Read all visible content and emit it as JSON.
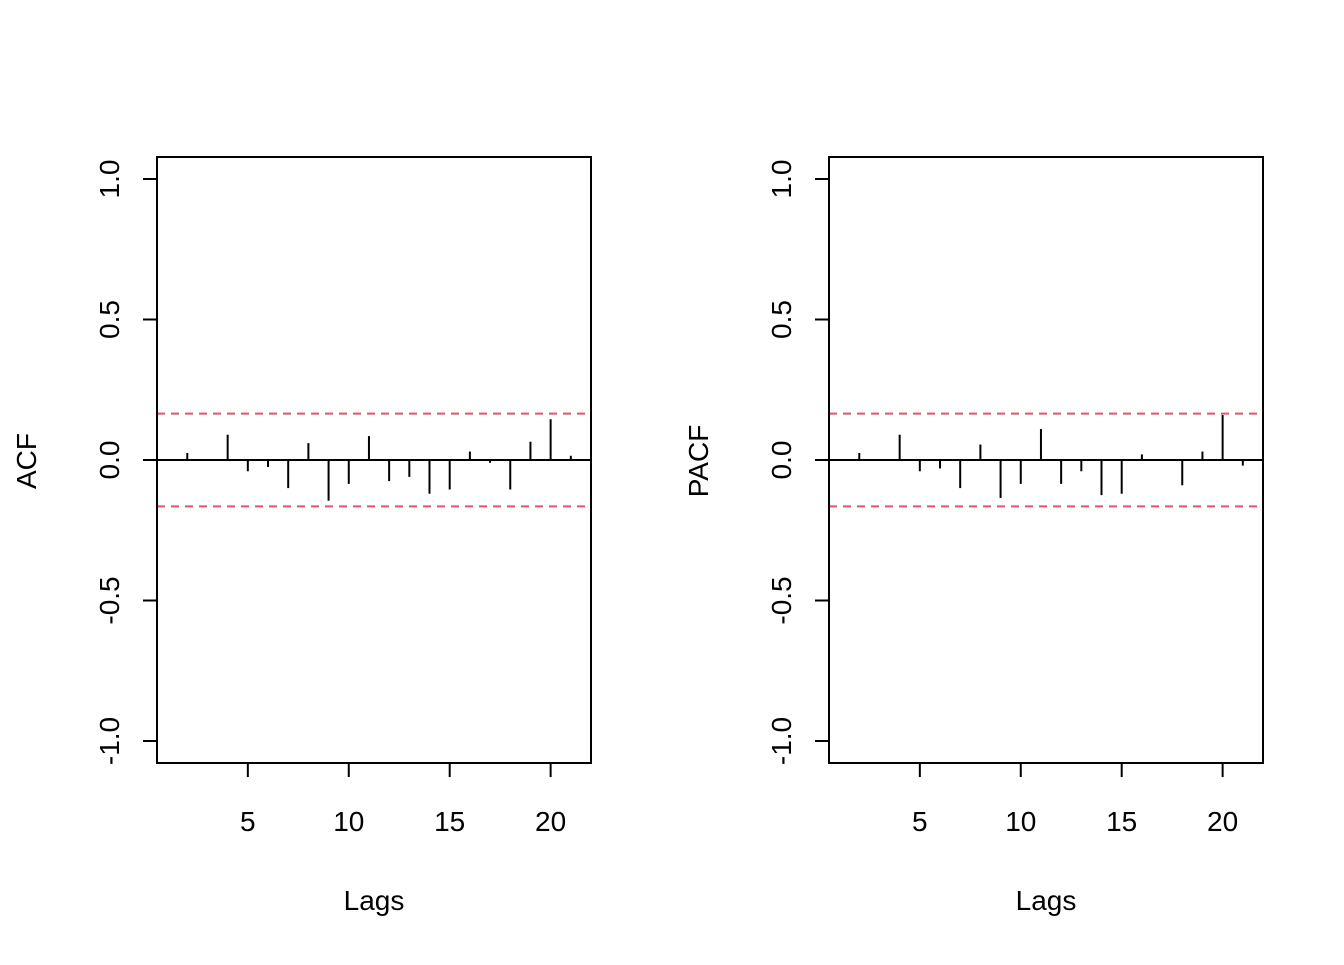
{
  "chart_data": [
    {
      "type": "bar",
      "style": "lag-spikes",
      "xlabel": "Lags",
      "ylabel": "ACF",
      "x": [
        1,
        2,
        3,
        4,
        5,
        6,
        7,
        8,
        9,
        10,
        11,
        12,
        13,
        14,
        15,
        16,
        17,
        18,
        19,
        20,
        21
      ],
      "values": [
        0.0,
        0.025,
        0.0,
        0.09,
        -0.04,
        -0.025,
        -0.1,
        0.06,
        -0.145,
        -0.085,
        0.085,
        -0.075,
        -0.06,
        -0.12,
        -0.105,
        0.03,
        -0.01,
        -0.105,
        0.065,
        0.145,
        0.015
      ],
      "ci": [
        0.165,
        -0.165
      ],
      "ci_color": "#E0536D",
      "xlim": [
        0.5,
        22
      ],
      "ylim": [
        -1.0,
        1.0
      ],
      "xticks": [
        5,
        10,
        15,
        20
      ],
      "yticks": [
        -1.0,
        -0.5,
        0.0,
        0.5,
        1.0
      ],
      "xtick_labels": [
        "5",
        "10",
        "15",
        "20"
      ],
      "ytick_labels": [
        "-1.0",
        "-0.5",
        "0.0",
        "0.5",
        "1.0"
      ]
    },
    {
      "type": "bar",
      "style": "lag-spikes",
      "xlabel": "Lags",
      "ylabel": "PACF",
      "x": [
        1,
        2,
        3,
        4,
        5,
        6,
        7,
        8,
        9,
        10,
        11,
        12,
        13,
        14,
        15,
        16,
        17,
        18,
        19,
        20,
        21
      ],
      "values": [
        0.0,
        0.025,
        0.0,
        0.09,
        -0.04,
        -0.03,
        -0.1,
        0.055,
        -0.135,
        -0.085,
        0.11,
        -0.085,
        -0.04,
        -0.125,
        -0.12,
        0.02,
        0.0,
        -0.09,
        0.03,
        0.16,
        -0.02
      ],
      "ci": [
        0.165,
        -0.165
      ],
      "ci_color": "#E0536D",
      "xlim": [
        0.5,
        22
      ],
      "ylim": [
        -1.0,
        1.0
      ],
      "xticks": [
        5,
        10,
        15,
        20
      ],
      "yticks": [
        -1.0,
        -0.5,
        0.0,
        0.5,
        1.0
      ],
      "xtick_labels": [
        "5",
        "10",
        "15",
        "20"
      ],
      "ytick_labels": [
        "-1.0",
        "-0.5",
        "0.0",
        "0.5",
        "1.0"
      ]
    }
  ]
}
